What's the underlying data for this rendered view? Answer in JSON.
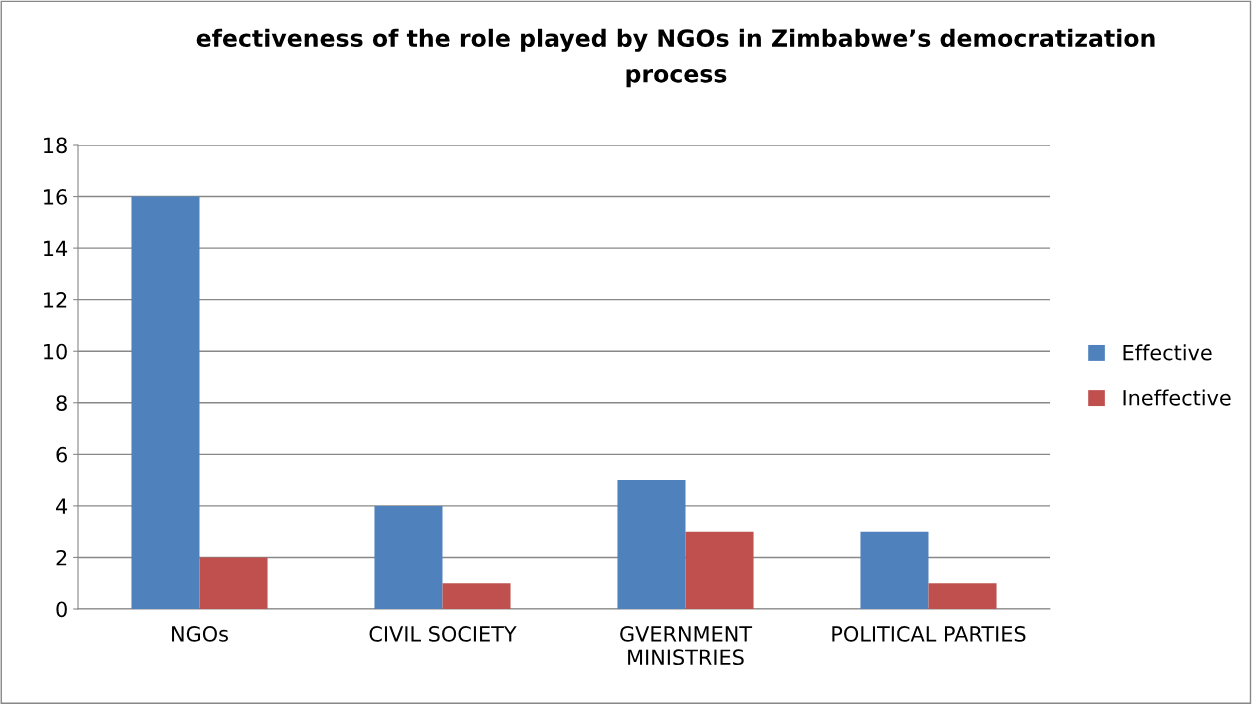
{
  "chart_data": {
    "type": "bar",
    "title": "efectiveness of the role played by NGOs in Zimbabwe’s democratization\nprocess",
    "categories": [
      "NGOs",
      "CIVIL SOCIETY",
      "GVERNMENT\nMINISTRIES",
      "POLITICAL PARTIES"
    ],
    "series": [
      {
        "name": "Effective",
        "color": "#4f81bd",
        "values": [
          16,
          4,
          5,
          3
        ]
      },
      {
        "name": "Ineffective",
        "color": "#c0504d",
        "values": [
          2,
          1,
          3,
          1
        ]
      }
    ],
    "ylim": [
      0,
      18
    ],
    "yticks": [
      0,
      2,
      4,
      6,
      8,
      10,
      12,
      14,
      16,
      18
    ],
    "grid": "y",
    "legend": "right"
  }
}
